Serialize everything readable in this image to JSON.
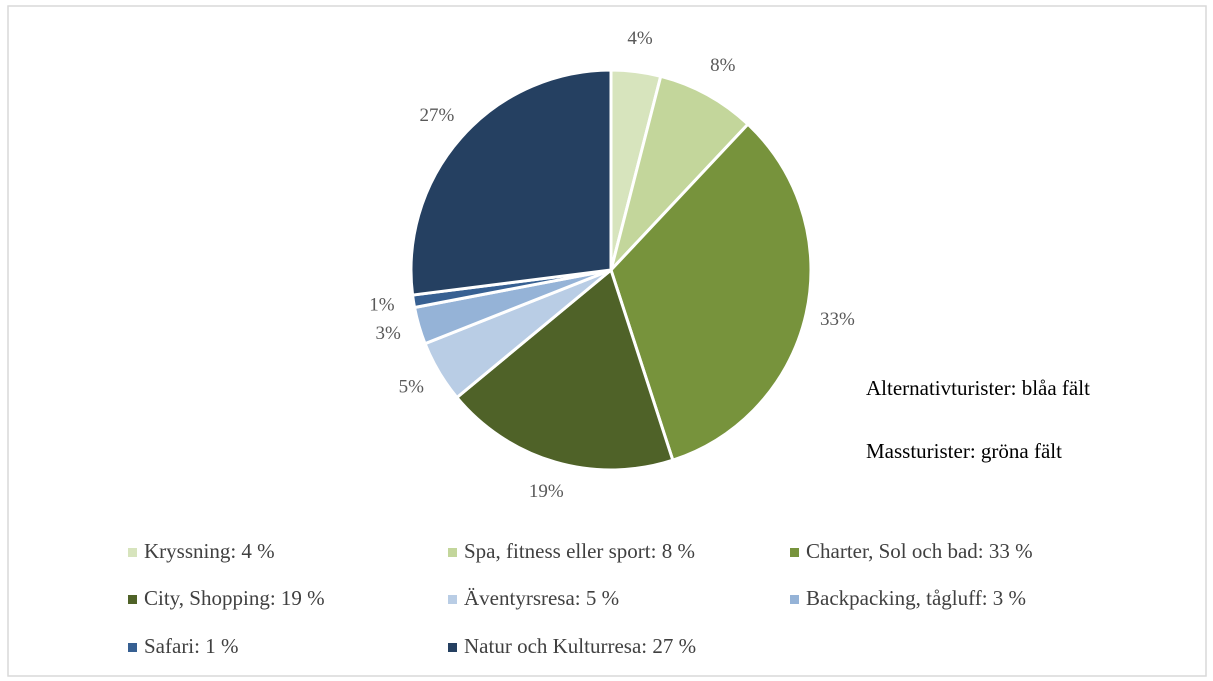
{
  "chart_data": {
    "type": "pie",
    "categories": [
      "Kryssning: 4 %",
      "Spa, fitness eller sport: 8 %",
      "Charter, Sol och bad: 33 %",
      "City, Shopping: 19 %",
      "Äventyrsresa: 5 %",
      "Backpacking, tågluff: 3 %",
      "Safari: 1 %",
      "Natur och Kulturresa: 27 %"
    ],
    "values": [
      4,
      8,
      33,
      19,
      5,
      3,
      1,
      27
    ],
    "value_labels": [
      "4%",
      "8%",
      "33%",
      "19%",
      "5%",
      "3%",
      "1%",
      "27%"
    ],
    "colors": [
      "#d7e4bd",
      "#c3d69b",
      "#77933c",
      "#4f6228",
      "#b9cde5",
      "#95b3d7",
      "#376092",
      "#254061"
    ],
    "annotations": [
      "Alternativturister: blåa fält",
      "Massturister: gröna fält"
    ],
    "legend": "bottom"
  }
}
